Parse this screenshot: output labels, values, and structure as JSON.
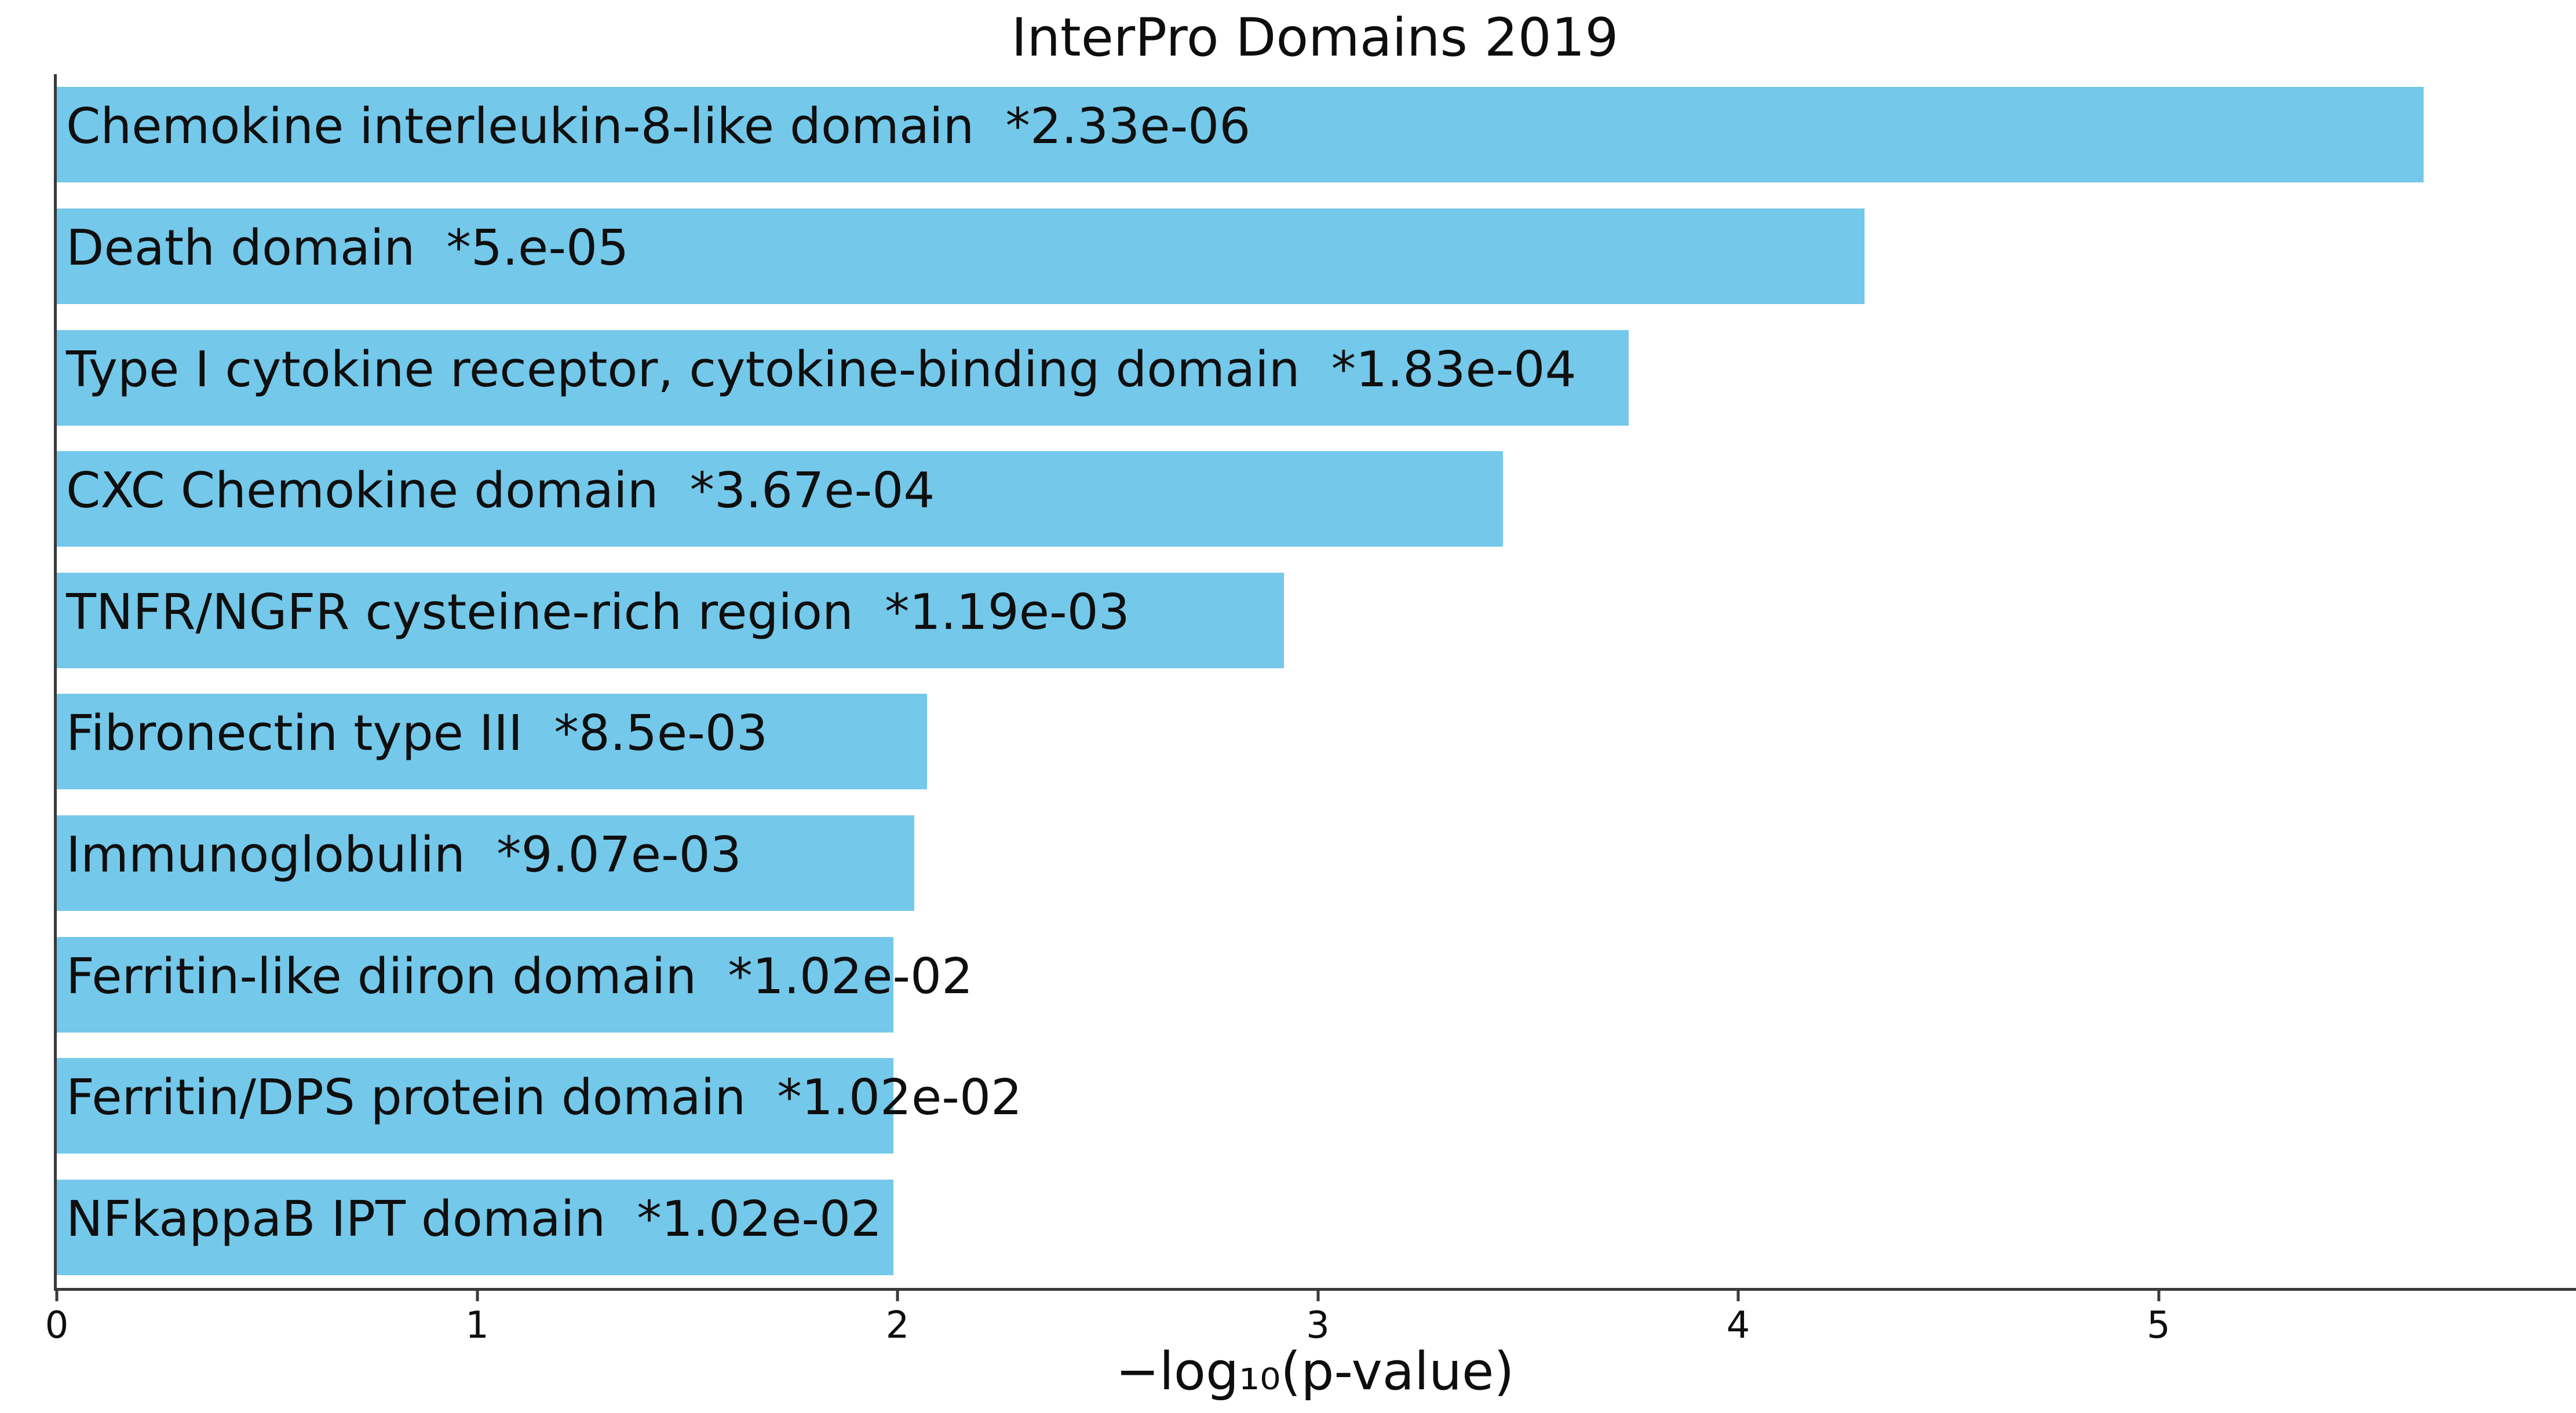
{
  "figure": {
    "background": "#ffffff"
  },
  "chart_data": {
    "type": "bar",
    "orientation": "horizontal",
    "title": "InterPro Domains 2019",
    "xlabel": "−log₁₀(p-value)",
    "xlim": [
      0,
      6
    ],
    "xticks": [
      "0",
      "1",
      "2",
      "3",
      "4",
      "5"
    ],
    "grid": false,
    "legend": false,
    "bar_color": "#74c8ea",
    "axis_color": "#3a3a3a",
    "text_color": "#0f0f0f",
    "bars": [
      {
        "label": "Chemokine interleukin-8-like domain",
        "p_value": "*2.33e-06",
        "value": 5.63
      },
      {
        "label": "Death domain",
        "p_value": "*5.e-05",
        "value": 4.3
      },
      {
        "label": "Type I cytokine receptor, cytokine-binding domain",
        "p_value": "*1.83e-04",
        "value": 3.74
      },
      {
        "label": "CXC Chemokine domain",
        "p_value": "*3.67e-04",
        "value": 3.44
      },
      {
        "label": "TNFR/NGFR cysteine-rich region",
        "p_value": "*1.19e-03",
        "value": 2.92
      },
      {
        "label": "Fibronectin type III",
        "p_value": "*8.5e-03",
        "value": 2.07
      },
      {
        "label": "Immunoglobulin",
        "p_value": "*9.07e-03",
        "value": 2.04
      },
      {
        "label": "Ferritin-like diiron domain",
        "p_value": "*1.02e-02",
        "value": 1.99
      },
      {
        "label": "Ferritin/DPS protein domain",
        "p_value": "*1.02e-02",
        "value": 1.99
      },
      {
        "label": "NFkappaB IPT domain",
        "p_value": "*1.02e-02",
        "value": 1.99
      }
    ]
  }
}
